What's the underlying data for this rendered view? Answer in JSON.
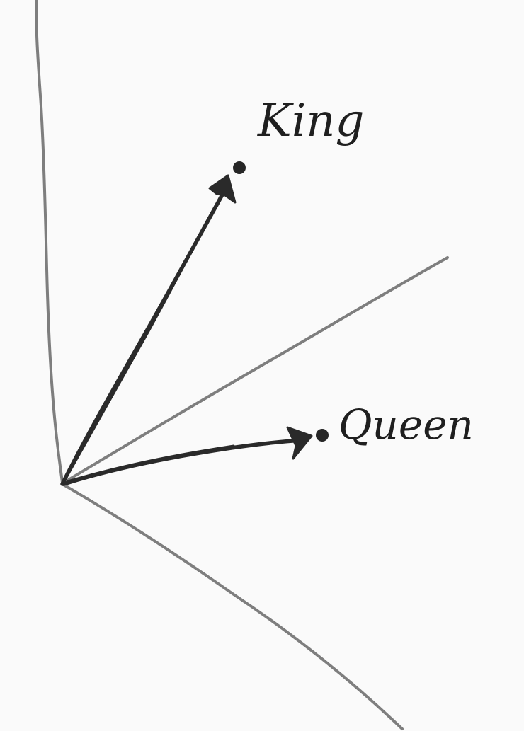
{
  "diagram": {
    "points": [
      {
        "label": "King"
      },
      {
        "label": "Queen"
      }
    ],
    "colors": {
      "background": "#fafafa",
      "axis_stroke": "#7e7e7e",
      "vector_stroke": "#2a2a2a",
      "point_fill": "#262626",
      "label_text": "#1f1f1f"
    }
  }
}
